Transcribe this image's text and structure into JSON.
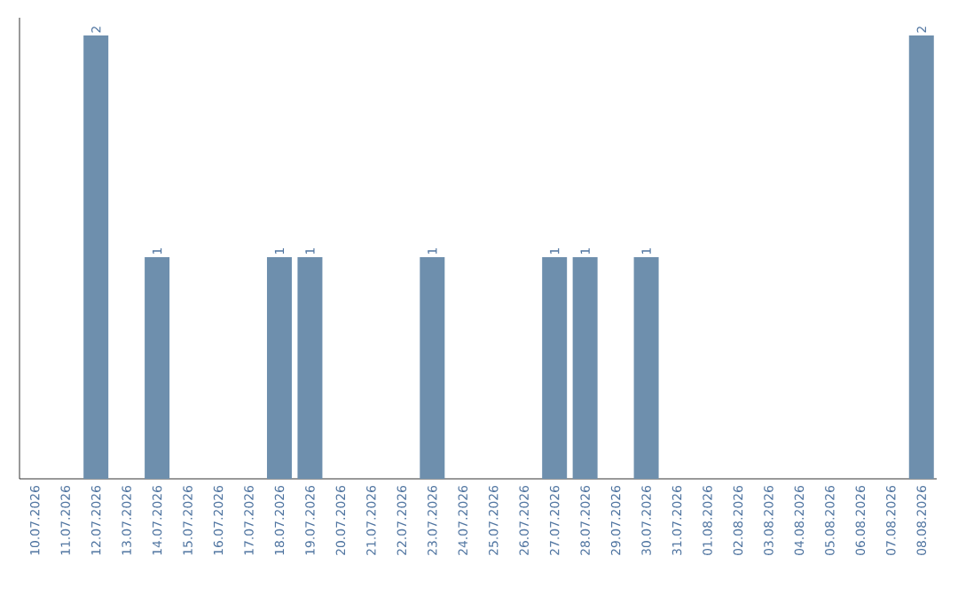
{
  "chart_data": {
    "type": "bar",
    "categories": [
      "10.07.2026",
      "11.07.2026",
      "12.07.2026",
      "13.07.2026",
      "14.07.2026",
      "15.07.2026",
      "16.07.2026",
      "17.07.2026",
      "18.07.2026",
      "19.07.2026",
      "20.07.2026",
      "21.07.2026",
      "22.07.2026",
      "23.07.2026",
      "24.07.2026",
      "25.07.2026",
      "26.07.2026",
      "27.07.2026",
      "28.07.2026",
      "29.07.2026",
      "30.07.2026",
      "31.07.2026",
      "01.08.2026",
      "02.08.2026",
      "03.08.2026",
      "04.08.2026",
      "05.08.2026",
      "06.08.2026",
      "07.08.2026",
      "08.08.2026"
    ],
    "values": [
      0,
      0,
      2,
      0,
      1,
      0,
      0,
      0,
      1,
      1,
      0,
      0,
      0,
      1,
      0,
      0,
      0,
      1,
      1,
      0,
      1,
      0,
      0,
      0,
      0,
      0,
      0,
      0,
      0,
      2
    ],
    "value_labels": [
      null,
      null,
      "2",
      null,
      "1",
      null,
      null,
      null,
      "1",
      "1",
      null,
      null,
      null,
      "1",
      null,
      null,
      null,
      "1",
      "1",
      null,
      "1",
      null,
      null,
      null,
      null,
      null,
      null,
      null,
      null,
      "2"
    ],
    "color": "#6e8fad",
    "ylim": [
      0,
      2.08
    ]
  }
}
